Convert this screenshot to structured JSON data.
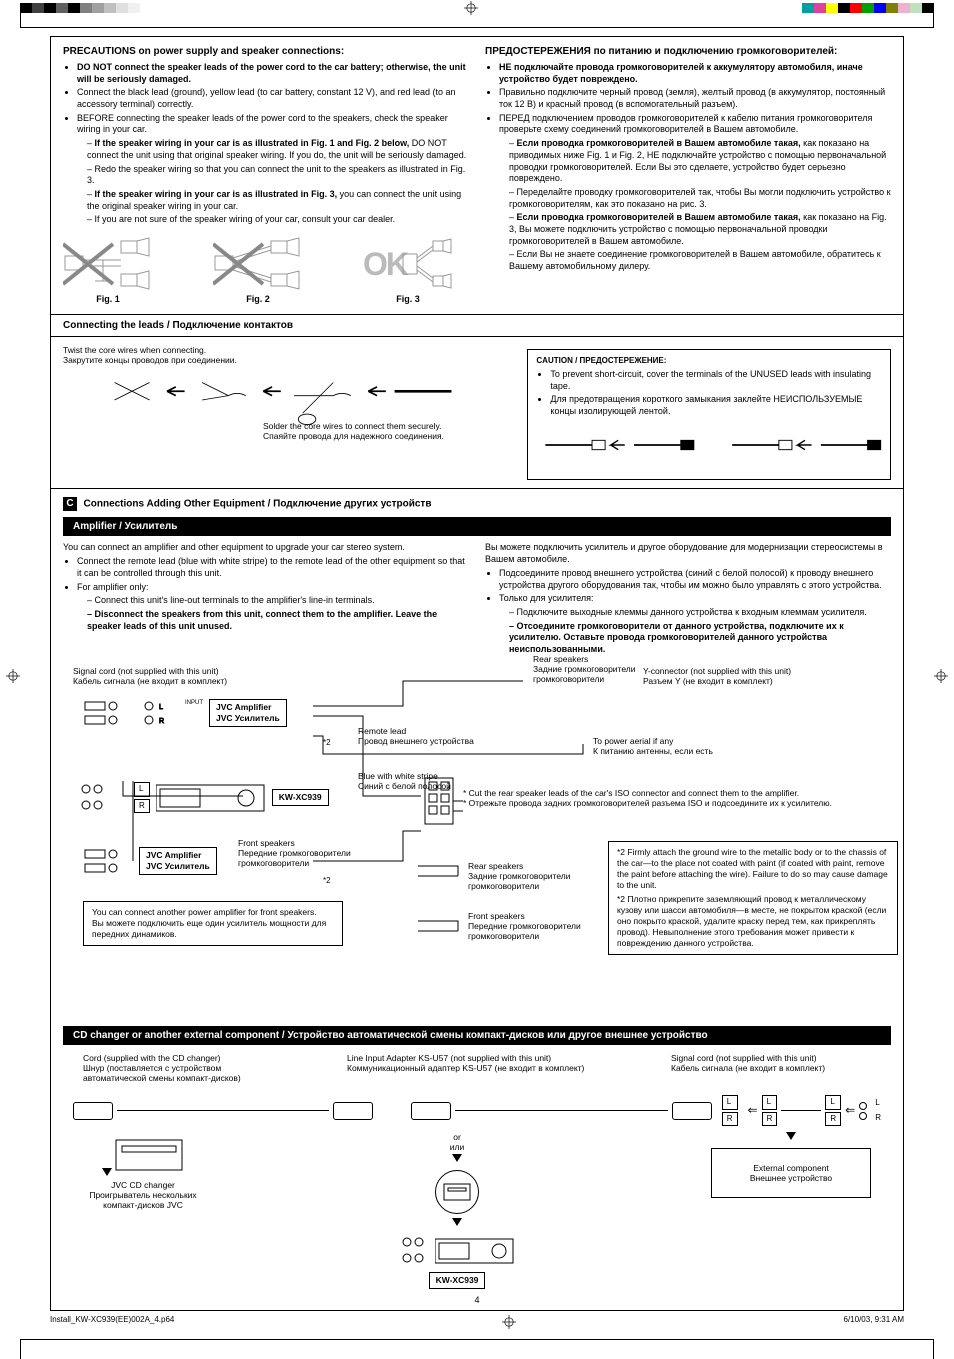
{
  "color_bars": {
    "left": [
      "#000000",
      "#404040",
      "#000000",
      "#606060",
      "#000000",
      "#808080",
      "#a0a0a0",
      "#c0c0c0",
      "#e0e0e0",
      "#f0f0f0"
    ],
    "right": [
      "#00a0a0",
      "#e040a0",
      "#ffff00",
      "#000000",
      "#ff0000",
      "#00a000",
      "#0000ff",
      "#808000",
      "#f0b0d0",
      "#c0e0c0",
      "#000000"
    ]
  },
  "precautions": {
    "title_en": "PRECAUTIONS on power supply and speaker connections:",
    "title_ru": "ПРЕДОСТЕРЕЖЕНИЯ по питанию и подключению громкоговорителей:",
    "en_items": [
      {
        "bold": true,
        "text": "DO NOT connect the speaker leads of the power cord to the car battery; otherwise, the unit will be seriously damaged."
      },
      {
        "text": "Connect the black lead (ground), yellow lead (to car battery, constant 12 V), and red lead (to an accessory terminal) correctly."
      },
      {
        "text": "BEFORE connecting the speaker leads of the power cord to the speakers, check the speaker wiring in your car."
      },
      {
        "sub": true,
        "html": "If the speaker wiring in your car is as illustrated in Fig. 1 and Fig. 2 below, DO NOT connect the unit using that original speaker wiring. If you do, the unit will be seriously damaged."
      },
      {
        "sub_plain": true,
        "text": "Redo the speaker wiring so that you can connect the unit to the speakers as illustrated in Fig. 3."
      },
      {
        "sub": true,
        "html": "If the speaker wiring in your car is as illustrated in Fig. 3, you can connect the unit using the original speaker wiring in your car."
      },
      {
        "sub_plain": true,
        "text": "If you are not sure of the speaker wiring of your car, consult your car dealer."
      }
    ],
    "ru_items": [
      {
        "bold": true,
        "text": "НЕ подключайте провода громкоговорителей к аккумулятору автомобиля, иначе устройство будет повреждено."
      },
      {
        "text": "Правильно подключите черный провод (земля), желтый провод (в аккумулятор, постоянный ток 12 В) и красный провод (в вспомогательный разъем)."
      },
      {
        "text": "ПЕРЕД подключением проводов громкоговорителей к кабелю питания громкоговорителя проверьте схему соединений громкоговорителей в Вашем автомобиле."
      },
      {
        "sub": true,
        "html": "Если проводка громкоговорителей в Вашем автомобиле такая, как показано на приводимых ниже Fig. 1 и Fig. 2, НЕ подключайте устройство с помощью первоначальной проводки громкоговорителей. Если Вы это сделаете, устройство будет серьезно повреждено."
      },
      {
        "sub_plain": true,
        "text": "Переделайте проводку громкоговорителей так, чтобы Вы могли подключить устройство к громкоговорителям, как это показано на рис. 3."
      },
      {
        "sub": true,
        "html": "Если проводка громкоговорителей в Вашем автомобиле такая, как показано на Fig. 3, Вы можете подключить устройство с помощью первоначальной проводки громкоговорителей в Вашем автомобиле."
      },
      {
        "sub_plain": true,
        "text": "Если Вы не знаете соединение громкоговорителей в Вашем автомобиле, обратитесь к Вашему автомобильному дилеру."
      }
    ],
    "fig1": "Fig. 1",
    "fig2": "Fig. 2",
    "fig3": "Fig. 3"
  },
  "connecting_leads": {
    "heading": "Connecting the leads / Подключение контактов",
    "twist_en": "Twist the core wires when connecting.",
    "twist_ru": "Закрутите концы проводов при соединении.",
    "solder_en": "Solder the core wires to connect them securely.",
    "solder_ru": "Спаяйте провода для надежного соединения.",
    "caution_label": "CAUTION / ПРЕДОСТЕРЕЖЕНИЕ:",
    "caution_en": "To prevent short-circuit, cover the terminals of the UNUSED leads with insulating tape.",
    "caution_ru": "Для предотвращения короткого замыкания заклейте НЕИСПОЛЬЗУЕМЫЕ концы изолирующей лентой."
  },
  "section_c": {
    "letter": "C",
    "heading": "Connections Adding Other Equipment / Подключение других устройств",
    "amplifier_bar": "Amplifier / Усилитель",
    "en_intro": "You can connect an amplifier and other equipment to upgrade your car stereo system.",
    "en_items": [
      "Connect the remote lead (blue with white stripe) to the remote lead of the other equipment so that it can be controlled through this unit.",
      "For amplifier only:"
    ],
    "en_sub": [
      "Connect this unit's line-out terminals to the amplifier's line-in terminals.",
      "Disconnect the speakers from this unit, connect them to the amplifier. Leave the speaker leads of this unit unused."
    ],
    "ru_intro": "Вы можете подключить усилитель и другое оборудование для модернизации стереосистемы в Вашем автомобиле.",
    "ru_items": [
      "Подсоедините провод внешнего устройства (синий с белой полосой) к проводу внешнего устройства другого оборудования так, чтобы им можно было управлять с этого устройства.",
      "Только для усилителя:"
    ],
    "ru_sub": [
      "Подключите выходные клеммы данного устройства к входным клеммам усилителя.",
      "Отсоедините громкоговорители от данного устройства, подключите их к усилителю. Оставьте провода громкоговорителей данного устройства неиспользованными."
    ]
  },
  "amp_diagram": {
    "signal_cord_en": "Signal cord (not supplied with this unit)",
    "signal_cord_ru": "Кабель сигнала (не входит в комплект)",
    "rear_speakers_en": "Rear speakers",
    "rear_speakers_ru": "Задние громкоговорители",
    "y_connector_en": "Y-connector (not supplied with this unit)",
    "y_connector_ru": "Разъем Y (не входит в комплект)",
    "jvc_amp_en": "JVC Amplifier",
    "jvc_amp_ru": "JVC Усилитель",
    "remote_lead_en": "Remote lead",
    "remote_lead_ru": "Провод внешнего устройства",
    "power_aerial_en": "To power aerial if any",
    "power_aerial_ru": "К питанию антенны, если есть",
    "blue_stripe_en": "Blue with white stripe",
    "blue_stripe_ru": "Синий с белой полосой",
    "model": "KW-XC939",
    "cut_note_en": "* Cut the rear speaker leads of the car's ISO connector and connect them to the amplifier.",
    "cut_note_ru": "* Отрежьте провода задних громкоговорителей разъема ISO и подсоедините их к усилителю.",
    "front_speakers_en": "Front speakers",
    "front_speakers_ru": "Передние громкоговорители",
    "another_amp_en": "You can connect another power amplifier for front speakers.",
    "another_amp_ru": "Вы можете подключить еще один усилитель мощности для передних динамиков.",
    "note2_en": "*2 Firmly attach the ground wire to the metallic body or to the chassis of the car—to the place not coated with paint (if coated with paint, remove the paint before attaching the wire). Failure to do so may cause damage to the unit.",
    "note2_ru": "*2 Плотно прикрепите заземляющий провод к металлическому кузову или шасси автомобиля—в месте, не покрытом краской (если оно покрыто краской, удалите краску перед тем, как прикреплять провод). Невыполнение этого требования может привести к повреждению данного устройства.",
    "input_label": "INPUT",
    "l": "L",
    "r": "R",
    "star2": "*2"
  },
  "cd_section": {
    "bar": "CD changer or another external component / Устройство автоматической смены компакт-дисков или другое внешнее устройство",
    "cord_en": "Cord (supplied with the CD changer)",
    "cord_ru": "Шнур (поставляется с устройством автоматической смены компакт-дисков)",
    "line_adapter_en": "Line Input Adapter KS-U57 (not supplied with this unit)",
    "line_adapter_ru": "Коммуникационный адаптер KS-U57 (не входит в комплект)",
    "signal_cord_en": "Signal cord (not supplied with this unit)",
    "signal_cord_ru": "Кабель сигнала (не входит в комплект)",
    "or_en": "or",
    "or_ru": "или",
    "changer_en": "JVC CD changer",
    "changer_ru": "Проигрыватель нескольких компакт-дисков JVC",
    "ext_en": "External component",
    "ext_ru": "Внешнее устройство",
    "model": "KW-XC939",
    "l": "L",
    "r": "R"
  },
  "page_number": "4",
  "footer": {
    "filename": "Install_KW-XC939(EE)002A_4.p6",
    "pg": "4",
    "timestamp": "6/10/03, 9:31 AM"
  }
}
